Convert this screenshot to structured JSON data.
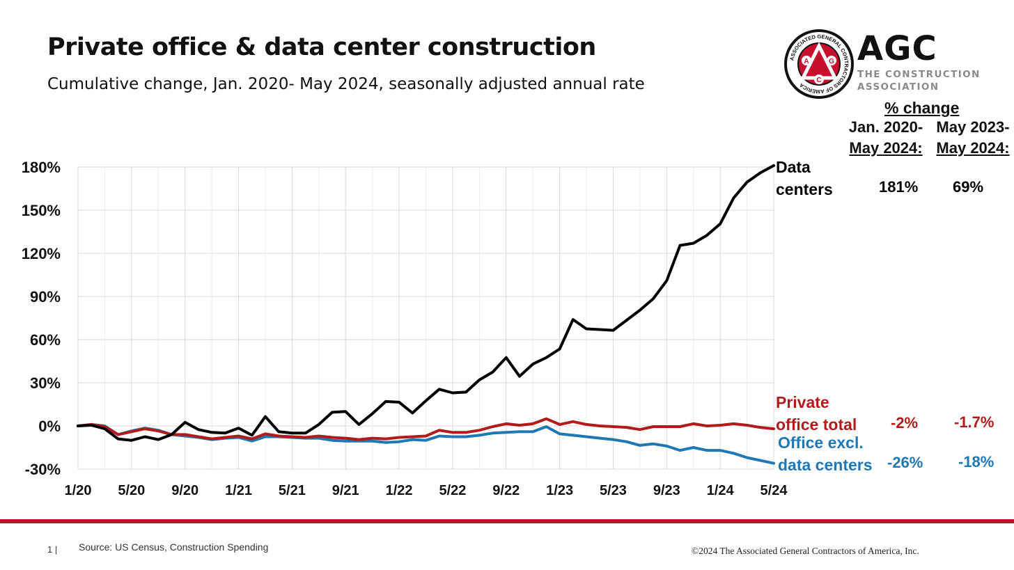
{
  "title": "Private office & data center construction",
  "subtitle": "Cumulative change, Jan. 2020- May 2024, seasonally adjusted annual rate",
  "logo": {
    "name": "AGC",
    "line1": "THE CONSTRUCTION",
    "line2": "ASSOCIATION",
    "seal_text": "ASSOCIATED GENERAL CONTRACTORS OF AMERICA",
    "seal_letters": [
      "A",
      "G",
      "C"
    ]
  },
  "table": {
    "header": "% change",
    "col1": {
      "line1": "Jan. 2020-",
      "line2": "May 2024:"
    },
    "col2": {
      "line1": "May 2023-",
      "line2": "May 2024:"
    },
    "rows": [
      {
        "series": "Data centers",
        "label_line1": "Data",
        "label_line2": "centers",
        "col1": "181%",
        "col2": "69%",
        "color": "#000000"
      },
      {
        "series": "Private office total",
        "label_line1": "Private",
        "label_line2": "office total",
        "col1": "-2%",
        "col2": "-1.7%",
        "color": "#b31b1b"
      },
      {
        "series": "Office excl. data centers",
        "label_line1": "Office excl.",
        "label_line2": "data centers",
        "col1": "-26%",
        "col2": "-18%",
        "color": "#1f77b4"
      }
    ]
  },
  "chart_data": {
    "type": "line",
    "x": [
      "1/20",
      "2/20",
      "3/20",
      "4/20",
      "5/20",
      "6/20",
      "7/20",
      "8/20",
      "9/20",
      "10/20",
      "11/20",
      "12/20",
      "1/21",
      "2/21",
      "3/21",
      "4/21",
      "5/21",
      "6/21",
      "7/21",
      "8/21",
      "9/21",
      "10/21",
      "11/21",
      "12/21",
      "1/22",
      "2/22",
      "3/22",
      "4/22",
      "5/22",
      "6/22",
      "7/22",
      "8/22",
      "9/22",
      "10/22",
      "11/22",
      "12/22",
      "1/23",
      "2/23",
      "3/23",
      "4/23",
      "5/23",
      "6/23",
      "7/23",
      "8/23",
      "9/23",
      "10/23",
      "11/23",
      "12/23",
      "1/24",
      "2/24",
      "3/24",
      "4/24",
      "5/24"
    ],
    "xticks": [
      "1/20",
      "5/20",
      "9/20",
      "1/21",
      "5/21",
      "9/21",
      "1/22",
      "5/22",
      "9/22",
      "1/23",
      "5/23",
      "9/23",
      "1/24",
      "5/24"
    ],
    "ylim": [
      -30,
      180
    ],
    "yticks": [
      -30,
      0,
      30,
      60,
      90,
      120,
      150,
      180
    ],
    "ytick_labels": [
      "-30%",
      "0%",
      "30%",
      "60%",
      "90%",
      "120%",
      "150%",
      "180%"
    ],
    "grid": true,
    "series": [
      {
        "name": "Data centers",
        "color": "#000000",
        "values": [
          0,
          0.5,
          -2,
          -9,
          -10,
          -7.5,
          -9.5,
          -6,
          2.5,
          -2.5,
          -4.5,
          -5,
          -1.5,
          -6.5,
          6.5,
          -4,
          -5,
          -5,
          1,
          9.5,
          10,
          1,
          8.5,
          17,
          16.5,
          9,
          17.5,
          25.5,
          23,
          23.5,
          32,
          37.5,
          47.5,
          34.5,
          43,
          47.5,
          53.5,
          74,
          67.5,
          67,
          66.5,
          73.5,
          80.5,
          88.5,
          101,
          125.5,
          127,
          132.5,
          140.5,
          158.5,
          169.5,
          176,
          181
        ]
      },
      {
        "name": "Private office total",
        "color": "#b31b1b",
        "values": [
          0,
          1,
          -0.5,
          -6,
          -4,
          -2,
          -3.5,
          -6,
          -6,
          -7.5,
          -9,
          -8,
          -7,
          -9,
          -5.5,
          -7,
          -7.5,
          -8,
          -7,
          -8,
          -8.5,
          -9.5,
          -8.5,
          -9,
          -8,
          -7.5,
          -7,
          -3,
          -4.5,
          -4.5,
          -3,
          -0.5,
          1.5,
          0.5,
          1.5,
          5,
          1,
          3,
          1,
          0,
          -0.5,
          -1,
          -2.5,
          -0.5,
          -0.5,
          -0.5,
          1.5,
          0,
          0.5,
          1.5,
          0.5,
          -1,
          -2
        ]
      },
      {
        "name": "Office excl. data centers",
        "color": "#1f77b4",
        "values": [
          0,
          1,
          0,
          -6,
          -3.5,
          -1.5,
          -3,
          -6,
          -7,
          -8,
          -9.5,
          -8.5,
          -8,
          -10.5,
          -7.5,
          -7.5,
          -8,
          -8.5,
          -8.5,
          -10,
          -10.5,
          -10.5,
          -10.5,
          -11.5,
          -11,
          -9.5,
          -10,
          -7,
          -7.5,
          -7.5,
          -6.5,
          -5,
          -4.5,
          -4,
          -4,
          -0.5,
          -5.5,
          -6.5,
          -7.5,
          -8.5,
          -9.5,
          -11,
          -13.5,
          -12.5,
          -14,
          -17,
          -15,
          -17,
          -17,
          -19,
          -22,
          -24,
          -26
        ]
      }
    ]
  },
  "footer": {
    "page": "1 |",
    "source": "Source: US Census, Construction Spending",
    "copyright": "©2024 The Associated General Contractors of America, Inc."
  }
}
